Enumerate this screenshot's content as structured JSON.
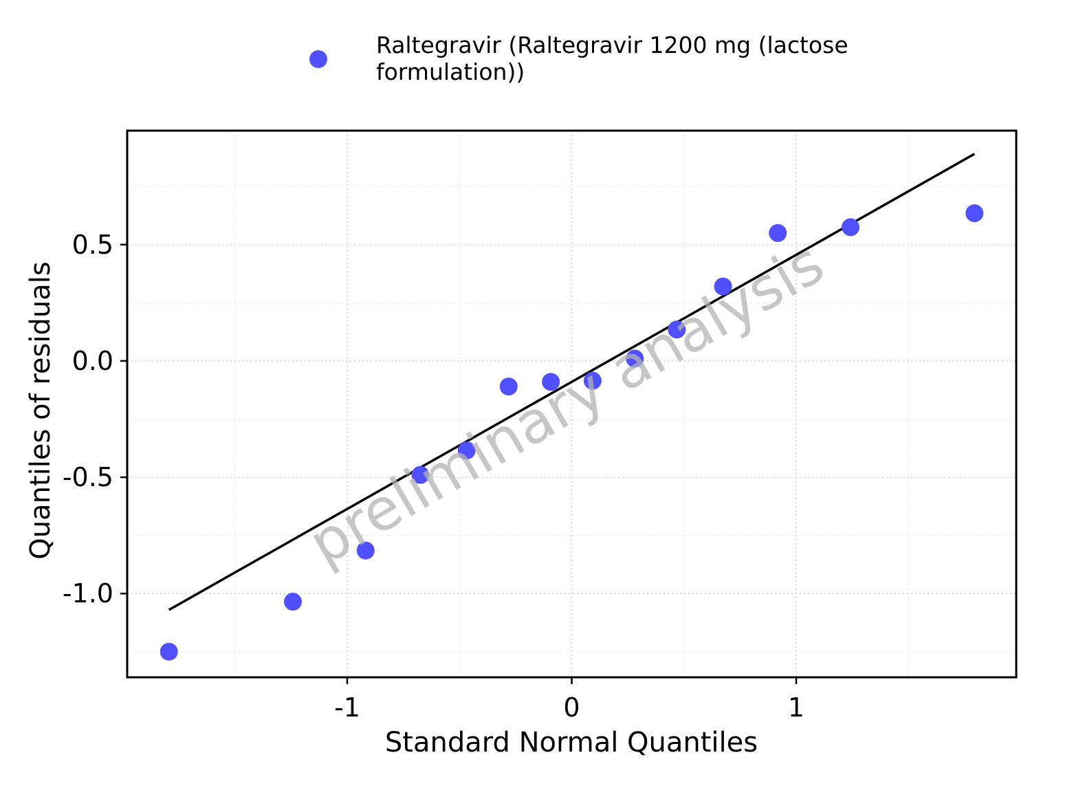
{
  "chart_data": {
    "type": "scatter",
    "xlabel": "Standard Normal Quantiles",
    "ylabel": "Quantiles of residuals",
    "watermark": "preliminary analysis",
    "legend": {
      "position": "top",
      "entries": [
        "Raltegravir (Raltegravir 1200 mg (lactose",
        "formulation))"
      ]
    },
    "xlim": [
      -1.98,
      1.98
    ],
    "ylim": [
      -1.36,
      0.99
    ],
    "xticks": [
      -1,
      0,
      1
    ],
    "xtick_labels": [
      "-1",
      "0",
      "1"
    ],
    "yticks": [
      -1.0,
      -0.5,
      0.0,
      0.5
    ],
    "ytick_labels": [
      "-1.0",
      "-0.5",
      "0.0",
      "0.5"
    ],
    "grid": true,
    "point_color": "#5050ff",
    "line_color": "#000000",
    "series": [
      {
        "x": [
          -1.794,
          -1.242,
          -0.918,
          -0.674,
          -0.468,
          -0.281,
          -0.093,
          0.093,
          0.281,
          0.468,
          0.674,
          0.918,
          1.242,
          1.794
        ],
        "y": [
          -1.25,
          -1.035,
          -0.815,
          -0.49,
          -0.385,
          -0.11,
          -0.09,
          -0.085,
          0.01,
          0.135,
          0.32,
          0.55,
          0.575,
          0.635
        ]
      }
    ],
    "reference_line": {
      "x": [
        -1.794,
        1.794
      ],
      "y": [
        -1.07,
        0.89
      ]
    }
  }
}
